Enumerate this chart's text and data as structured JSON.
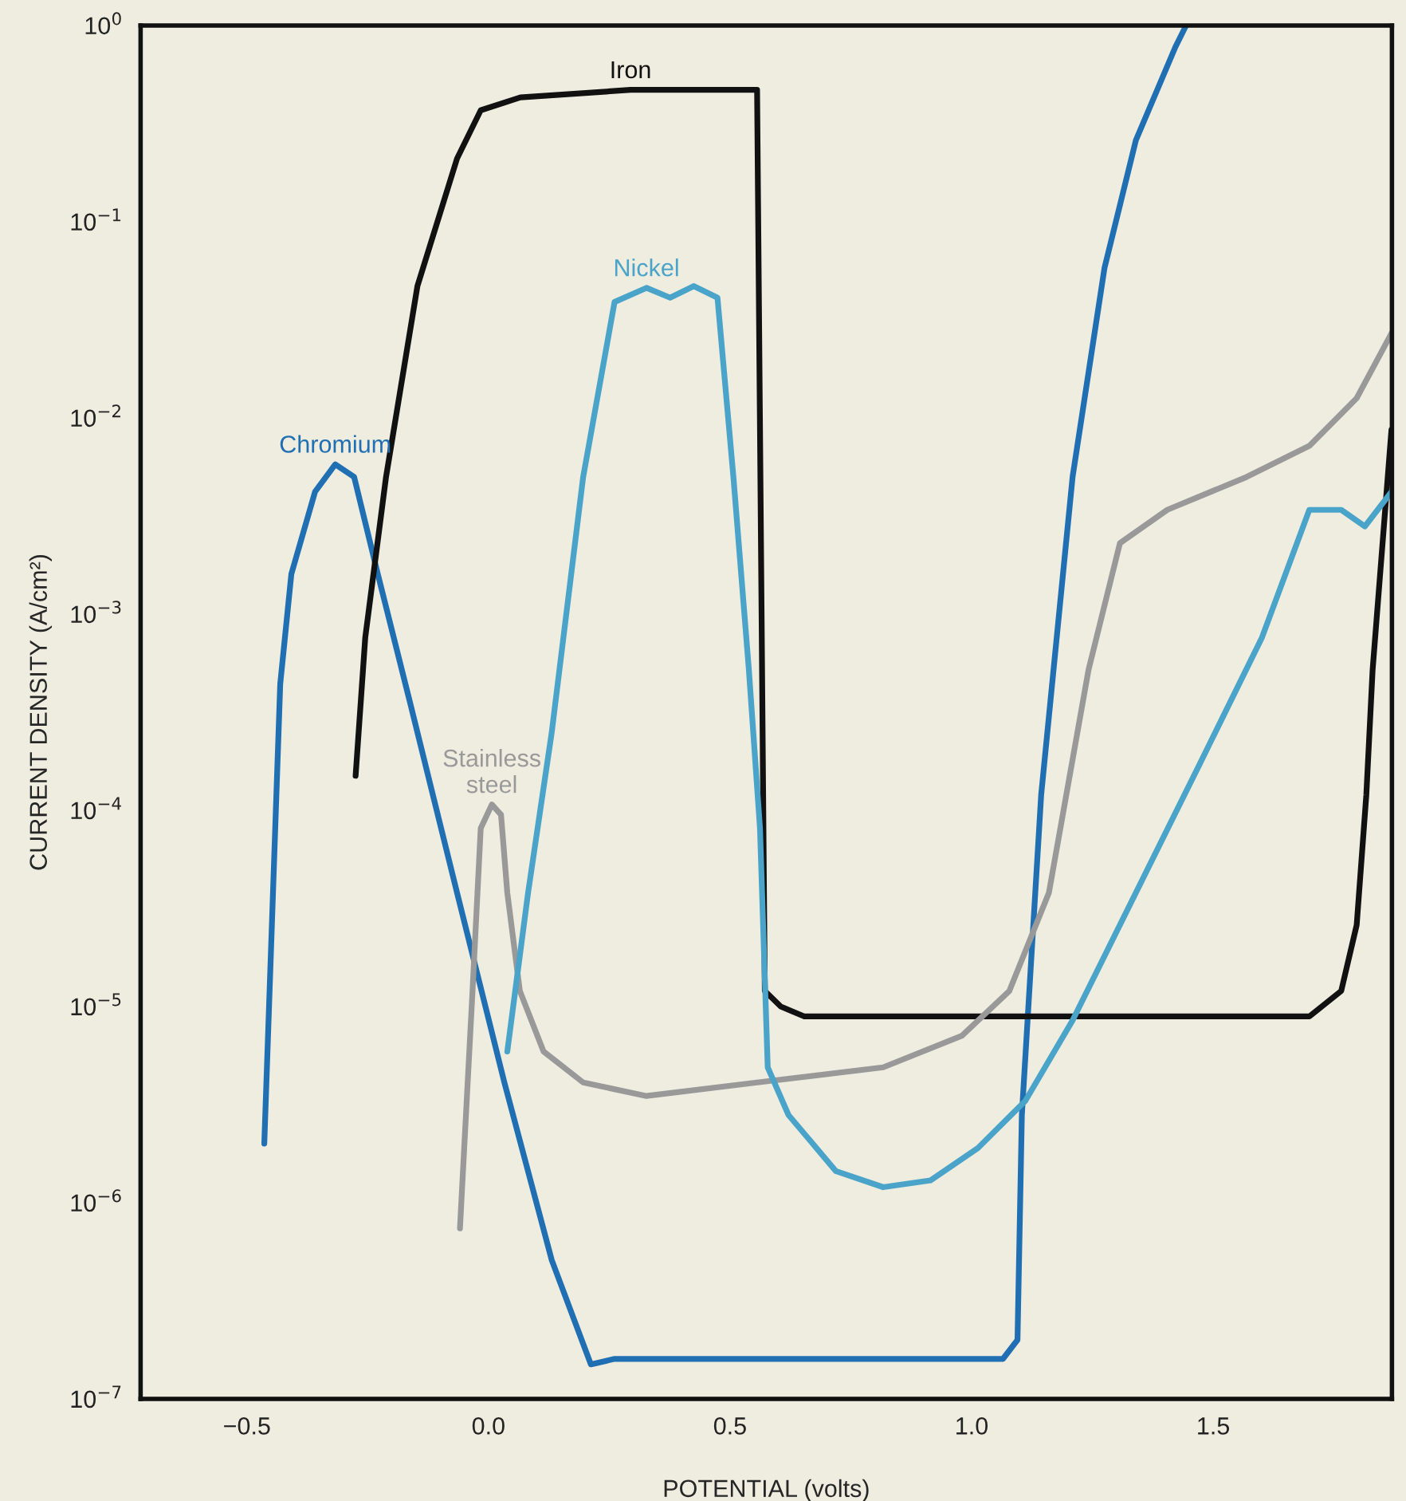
{
  "chart_data": {
    "type": "line",
    "xlabel": "POTENTIAL (volts)",
    "ylabel": "CURRENT DENSITY (A/cm²)",
    "log": "y",
    "xlim": [
      -0.72,
      1.87
    ],
    "xticks": [
      {
        "value": -0.5,
        "label": "−0.5"
      },
      {
        "value": 0.0,
        "label": "0.0"
      },
      {
        "value": 0.5,
        "label": "0.5"
      },
      {
        "value": 1.0,
        "label": "1.0"
      },
      {
        "value": 1.5,
        "label": "1.5"
      }
    ],
    "ylim": [
      1e-07,
      1
    ],
    "yticks": [
      {
        "value": 1e-07,
        "label": "10$^{−7}$"
      },
      {
        "value": 1e-06,
        "label": "10$^{−6}$"
      },
      {
        "value": 1e-05,
        "label": "10$^{−5}$"
      },
      {
        "value": 0.0001,
        "label": "10$^{−4}$"
      },
      {
        "value": 0.001,
        "label": "10$^{−3}$"
      },
      {
        "value": 0.01,
        "label": "10$^{−2}$"
      },
      {
        "value": 0.1,
        "label": "10$^{−1}$"
      },
      {
        "value": 1,
        "label": "10$^{0}$"
      }
    ],
    "grid": false,
    "legend": false,
    "series": [
      {
        "name": "Chromium",
        "color": "#1f6fb2",
        "x": [
          -0.464,
          -0.431,
          -0.408,
          -0.359,
          -0.317,
          -0.278,
          -0.229,
          -0.163,
          -0.065,
          0.033,
          0.131,
          0.212,
          0.261,
          1.013,
          1.065,
          1.095,
          1.104,
          1.144,
          1.209,
          1.275,
          1.34,
          1.422,
          1.444
        ],
        "values": [
          2e-06,
          0.00044,
          0.0016,
          0.0042,
          0.0058,
          0.005,
          0.0016,
          0.00036,
          3.8e-05,
          4.1e-06,
          5.1e-07,
          1.5e-07,
          1.6e-07,
          1.6e-07,
          1.6e-07,
          2e-07,
          2.8e-06,
          0.00012,
          0.005,
          0.058,
          0.26,
          0.78,
          1.0
        ]
      },
      {
        "name": "Iron",
        "color": "#111111",
        "x": [
          -0.275,
          -0.255,
          -0.212,
          -0.147,
          -0.065,
          -0.016,
          0.066,
          0.294,
          0.458,
          0.556,
          0.572,
          0.605,
          0.654,
          1.111,
          1.699,
          1.765,
          1.797,
          1.817,
          1.83,
          1.869
        ],
        "values": [
          0.00015,
          0.00076,
          0.005,
          0.047,
          0.21,
          0.37,
          0.43,
          0.47,
          0.47,
          0.47,
          1.2e-05,
          1e-05,
          8.9e-06,
          8.9e-06,
          8.9e-06,
          1.2e-05,
          2.6e-05,
          0.00012,
          0.00052,
          0.0087
        ]
      },
      {
        "name": "Stainless\nsteel",
        "color": "#999999",
        "x": [
          -0.059,
          -0.033,
          -0.016,
          0.007,
          0.026,
          0.039,
          0.065,
          0.114,
          0.196,
          0.327,
          0.556,
          0.817,
          0.98,
          1.078,
          1.16,
          1.242,
          1.307,
          1.405,
          1.569,
          1.699,
          1.797,
          1.869
        ],
        "values": [
          7.4e-07,
          1.2e-05,
          8.1e-05,
          0.000107,
          9.5e-05,
          3.8e-05,
          1.2e-05,
          5.9e-06,
          4.1e-06,
          3.5e-06,
          4.1e-06,
          4.9e-06,
          7.1e-06,
          1.2e-05,
          3.8e-05,
          0.00052,
          0.0023,
          0.0034,
          0.005,
          0.0072,
          0.0126,
          0.027
        ]
      },
      {
        "name": "Nickel",
        "color": "#4aa3c8",
        "x": [
          0.039,
          0.082,
          0.131,
          0.196,
          0.261,
          0.327,
          0.376,
          0.425,
          0.474,
          0.507,
          0.539,
          0.562,
          0.578,
          0.621,
          0.719,
          0.817,
          0.915,
          1.013,
          1.111,
          1.209,
          1.34,
          1.471,
          1.601,
          1.699,
          1.765,
          1.814,
          1.869
        ],
        "values": [
          5.9e-06,
          3.8e-05,
          0.00025,
          0.005,
          0.039,
          0.046,
          0.041,
          0.047,
          0.041,
          0.005,
          0.00052,
          8.1e-05,
          4.9e-06,
          2.8e-06,
          1.45e-06,
          1.2e-06,
          1.3e-06,
          1.9e-06,
          3.3e-06,
          8.5e-06,
          3.8e-05,
          0.00017,
          0.00076,
          0.0034,
          0.0034,
          0.0028,
          0.0042
        ]
      }
    ]
  }
}
